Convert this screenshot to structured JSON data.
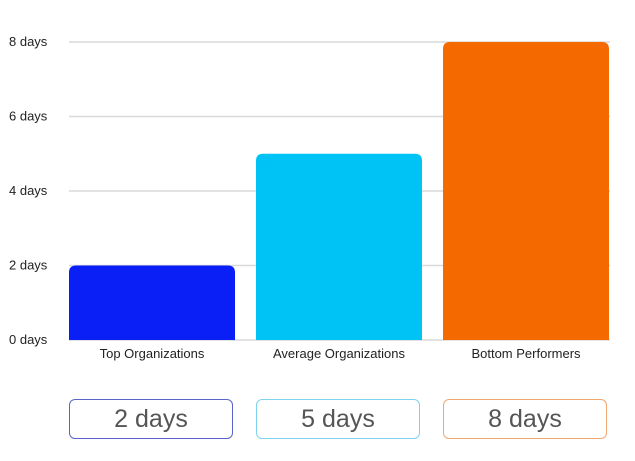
{
  "chart_data": {
    "type": "bar",
    "categories": [
      "Top Organizations",
      "Average Organizations",
      "Bottom Performers"
    ],
    "values": [
      2,
      5,
      8
    ],
    "value_labels": [
      "2 days",
      "5 days",
      "8 days"
    ],
    "y_ticks": [
      {
        "value": 0,
        "label": "0 days"
      },
      {
        "value": 2,
        "label": "2 days"
      },
      {
        "value": 4,
        "label": "4 days"
      },
      {
        "value": 6,
        "label": "6 days"
      },
      {
        "value": 8,
        "label": "8 days"
      }
    ],
    "ylim": [
      0,
      8
    ],
    "grid": true,
    "colors": [
      "#0a1ff5",
      "#00c3f5",
      "#f56a00"
    ],
    "pill_border_colors": [
      "#5a64c8",
      "#7fd3ec",
      "#f0a772"
    ]
  }
}
